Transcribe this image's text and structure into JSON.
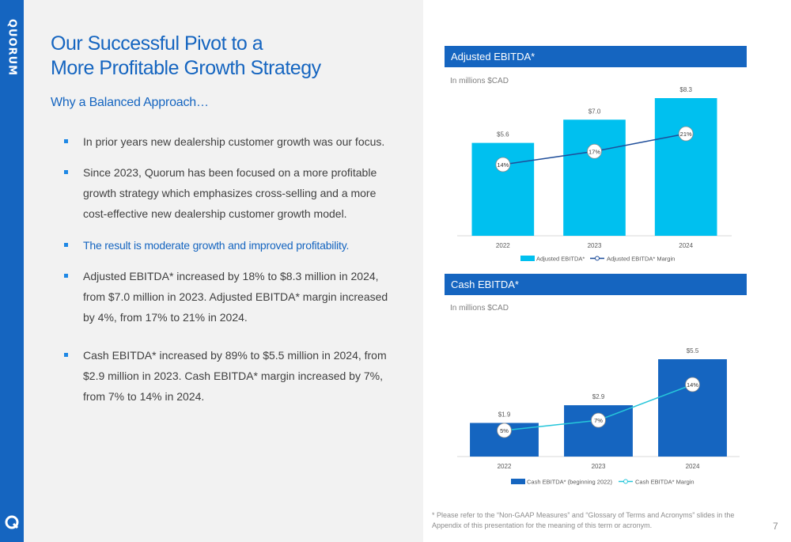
{
  "brand": {
    "logo_text": "QUORUM",
    "accent": "#1565c0"
  },
  "title_lines": [
    "Our Successful Pivot to a",
    "More Profitable Growth Strategy"
  ],
  "subtitle": "Why a Balanced Approach…",
  "bullets": [
    "In prior years new dealership customer growth was our focus.",
    "Since 2023, Quorum has been focused on a more profitable growth strategy which emphasizes cross-selling and a more cost-effective new dealership customer growth model.",
    "The result is moderate growth and improved profitability.",
    "Adjusted EBITDA* increased by 18% to $8.3 million in 2024, from $7.0 million in 2023. Adjusted EBITDA* margin increased by 4%, from 17% to 21% in 2024.",
    "Cash EBITDA* increased by 89% to $5.5 million in 2024, from $2.9 million in 2023. Cash EBITDA* margin increased by 7%, from 7% to 14% in 2024."
  ],
  "chart_data": [
    {
      "type": "bar",
      "section_title": "Adjusted EBITDA*",
      "units_note": "In millions $CAD",
      "categories": [
        "2022",
        "2023",
        "2024"
      ],
      "bar_series": {
        "name": "Adjusted EBITDA*",
        "values": [
          5.6,
          7.0,
          8.3
        ],
        "labels": [
          "$5.6",
          "$7.0",
          "$8.3"
        ],
        "color": "#00c0ef"
      },
      "line_series": {
        "name": "Adjusted EBITDA* Margin",
        "values": [
          14,
          17,
          21
        ],
        "labels": [
          "14%",
          "17%",
          "21%"
        ],
        "color": "#1f4e9a"
      },
      "legend": "bottom"
    },
    {
      "type": "bar",
      "section_title": "Cash EBITDA*",
      "units_note": "In millions $CAD",
      "categories": [
        "2022",
        "2023",
        "2024"
      ],
      "bar_series": {
        "name": "Cash EBITDA* (beginning 2022)",
        "values": [
          1.9,
          2.9,
          5.5
        ],
        "labels": [
          "$1.9",
          "$2.9",
          "$5.5"
        ],
        "color": "#1565c0"
      },
      "line_series": {
        "name": "Cash EBITDA* Margin",
        "values": [
          5,
          7,
          14
        ],
        "labels": [
          "5%",
          "7%",
          "14%"
        ],
        "color": "#26c6da"
      },
      "legend": "bottom"
    }
  ],
  "footnote": "* Please refer to the “Non-GAAP Measures” and “Glossary of Terms and Acronyms” slides in the Appendix of this presentation for the meaning of this term or acronym.",
  "page_number": "7"
}
